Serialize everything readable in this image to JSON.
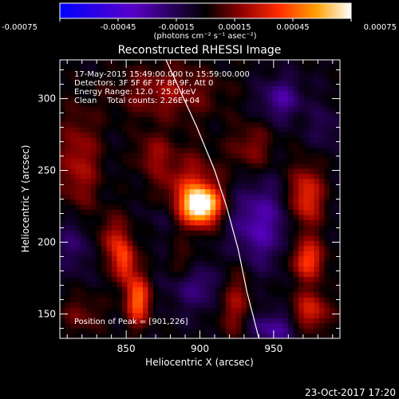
{
  "chart_data": {
    "type": "heatmap",
    "title": "Reconstructed RHESSI Image",
    "xlabel": "Heliocentric X (arcsec)",
    "ylabel": "Heliocentric Y (arcsec)",
    "xlim": [
      805,
      995
    ],
    "ylim": [
      133,
      327
    ],
    "xticks": [
      850,
      900,
      950
    ],
    "yticks": [
      150,
      200,
      250,
      300
    ],
    "colorbar": {
      "min": -0.00075,
      "max": 0.00075,
      "tick_values": [
        -0.00075,
        -0.00045,
        -0.00015,
        0.00015,
        0.00045,
        0.00075
      ],
      "tick_labels": [
        "-0.00075",
        "-0.00045",
        "-0.00015",
        "0.00015",
        "0.00045",
        "0.00075"
      ],
      "unit_label": "(photons cm⁻² s⁻¹ asec⁻²)"
    },
    "info_lines": [
      "17-May-2015 15:49:00.000 to 15:59:00.000",
      "Detectors: 3F 5F 6F 7F 8F 9F, Att 0",
      "Energy Range: 12.0 - 25.0 keV",
      "Clean    Total counts: 2.26E+04"
    ],
    "peak_label": "Position of Peak = [901,226]",
    "peak": [
      901,
      226
    ],
    "limb_curve": {
      "x": [
        877,
        898,
        910,
        918,
        926,
        932,
        937,
        940
      ],
      "y": [
        327,
        280,
        250,
        225,
        195,
        165,
        145,
        133
      ]
    },
    "sources": [
      {
        "x": 901,
        "y": 226,
        "sx": 9,
        "sy": 9,
        "amp": 0.00078
      },
      {
        "x": 892,
        "y": 238,
        "sx": 15,
        "sy": 18,
        "amp": 0.00028
      },
      {
        "x": 858,
        "y": 160,
        "sx": 6,
        "sy": 12,
        "amp": 0.0005
      },
      {
        "x": 849,
        "y": 186,
        "sx": 5,
        "sy": 10,
        "amp": 0.00038
      },
      {
        "x": 842,
        "y": 202,
        "sx": 8,
        "sy": 12,
        "amp": 0.00025
      },
      {
        "x": 972,
        "y": 232,
        "sx": 8,
        "sy": 15,
        "amp": 0.0004
      },
      {
        "x": 973,
        "y": 188,
        "sx": 8,
        "sy": 10,
        "amp": 0.00042
      },
      {
        "x": 975,
        "y": 152,
        "sx": 9,
        "sy": 10,
        "amp": 0.00034
      },
      {
        "x": 923,
        "y": 160,
        "sx": 8,
        "sy": 18,
        "amp": 0.00026
      },
      {
        "x": 818,
        "y": 255,
        "sx": 10,
        "sy": 25,
        "amp": 0.00026
      },
      {
        "x": 820,
        "y": 150,
        "sx": 10,
        "sy": 10,
        "amp": 0.00016
      },
      {
        "x": 868,
        "y": 262,
        "sx": 8,
        "sy": 10,
        "amp": 0.0002
      },
      {
        "x": 878,
        "y": 305,
        "sx": 25,
        "sy": 14,
        "amp": 0.00022
      },
      {
        "x": 935,
        "y": 266,
        "sx": 10,
        "sy": 12,
        "amp": 0.0002
      },
      {
        "x": 890,
        "y": 185,
        "sx": 8,
        "sy": 8,
        "amp": 0.00014
      },
      {
        "x": 955,
        "y": 300,
        "sx": 10,
        "sy": 10,
        "amp": -0.00026
      },
      {
        "x": 940,
        "y": 213,
        "sx": 14,
        "sy": 20,
        "amp": -0.0003
      },
      {
        "x": 900,
        "y": 170,
        "sx": 14,
        "sy": 12,
        "amp": -0.0002
      },
      {
        "x": 875,
        "y": 220,
        "sx": 8,
        "sy": 10,
        "amp": -0.00012
      },
      {
        "x": 950,
        "y": 140,
        "sx": 12,
        "sy": 8,
        "amp": -0.00026
      },
      {
        "x": 815,
        "y": 200,
        "sx": 8,
        "sy": 14,
        "amp": -0.00018
      },
      {
        "x": 985,
        "y": 280,
        "sx": 8,
        "sy": 10,
        "amp": -0.00012
      }
    ]
  },
  "footer": {
    "date": "23-Oct-2017 17:20"
  }
}
